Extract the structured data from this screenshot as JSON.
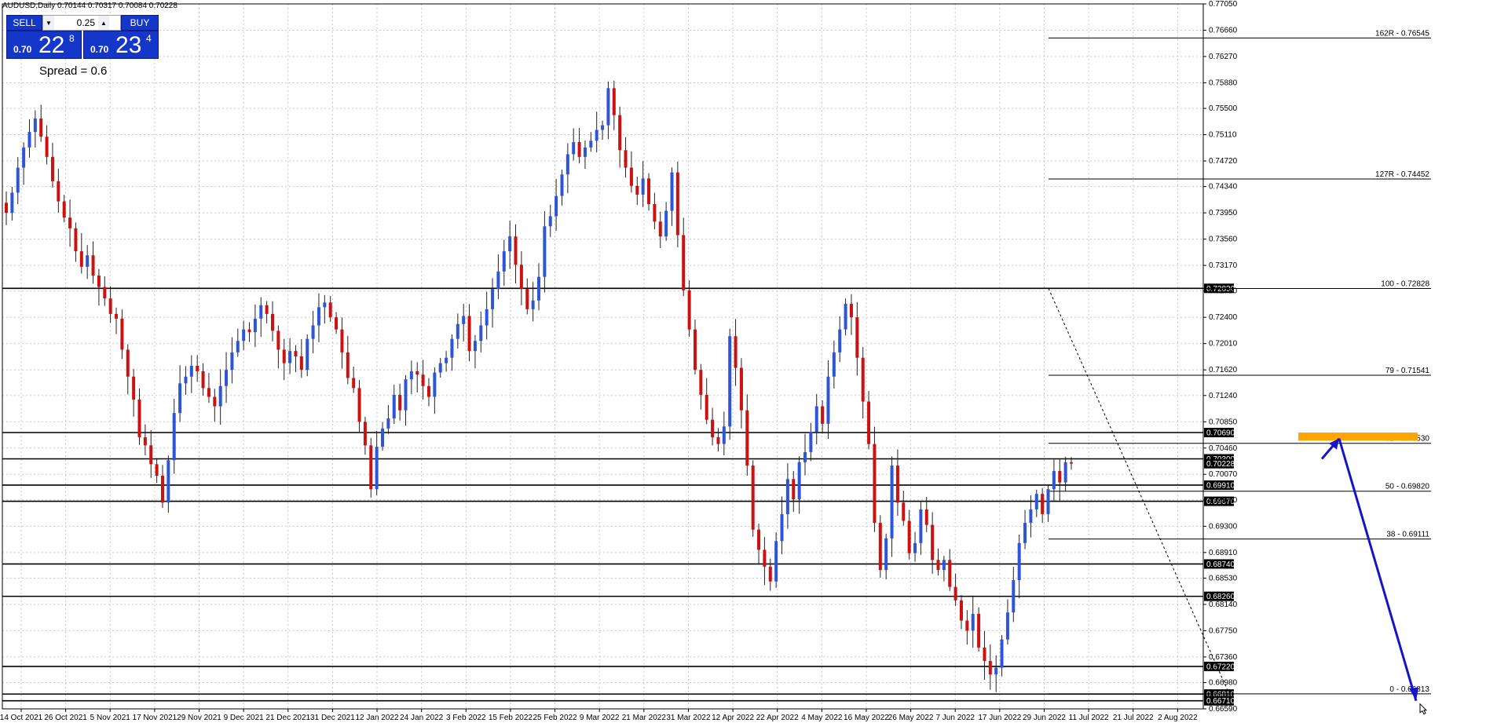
{
  "window": {
    "symbol_caption": "AUDUSD,Daily  0.70144 0.70317 0.70084 0.70228"
  },
  "trade_panel": {
    "sell_label": "SELL",
    "buy_label": "BUY",
    "lot_value": "0.25",
    "sell_prefix": "0.70",
    "sell_big": "22",
    "sell_sup": "8",
    "buy_prefix": "0.70",
    "buy_big": "23",
    "buy_sup": "4",
    "spread": "Spread = 0.6"
  },
  "colors": {
    "bull": "#2e55d6",
    "bear": "#cc1111",
    "grid": "#c8c8c8",
    "arrow": "#1414c8",
    "zone": "#ffa500"
  },
  "chart_data": {
    "type": "candlestick",
    "title": "",
    "ylim": [
      0.6659,
      0.7705
    ],
    "y_ticks": [
      "0.77050",
      "0.76660",
      "0.76270",
      "0.75880",
      "0.75500",
      "0.75110",
      "0.74720",
      "0.74340",
      "0.73950",
      "0.73560",
      "0.73170",
      "0.72790",
      "0.72400",
      "0.72010",
      "0.71620",
      "0.71240",
      "0.70850",
      "0.70460",
      "0.70070",
      "0.69690",
      "0.69300",
      "0.68910",
      "0.68530",
      "0.68140",
      "0.67750",
      "0.67360",
      "0.66980",
      "0.66590"
    ],
    "x_labels": [
      "14 Oct 2021",
      "26 Oct 2021",
      "5 Nov 2021",
      "17 Nov 2021",
      "29 Nov 2021",
      "9 Dec 2021",
      "21 Dec 2021",
      "31 Dec 2021",
      "12 Jan 2022",
      "24 Jan 2022",
      "3 Feb 2022",
      "15 Feb 2022",
      "25 Feb 2022",
      "9 Mar 2022",
      "21 Mar 2022",
      "31 Mar 2022",
      "12 Apr 2022",
      "22 Apr 2022",
      "4 May 2022",
      "16 May 2022",
      "26 May 2022",
      "7 Jun 2022",
      "17 Jun 2022",
      "29 Jun 2022",
      "11 Jul 2022",
      "21 Jul 2022",
      "2 Aug 2022"
    ],
    "close_path": [
      0.7395,
      0.7425,
      0.7462,
      0.7492,
      0.7515,
      0.7535,
      0.7508,
      0.7478,
      0.7442,
      0.7412,
      0.7388,
      0.7372,
      0.7338,
      0.7315,
      0.7332,
      0.7302,
      0.7285,
      0.7268,
      0.7245,
      0.7238,
      0.7192,
      0.7152,
      0.7118,
      0.7062,
      0.705,
      0.7022,
      0.7005,
      0.6965,
      0.7028,
      0.7098,
      0.7142,
      0.7152,
      0.7168,
      0.716,
      0.7135,
      0.7122,
      0.7108,
      0.7138,
      0.7162,
      0.7188,
      0.7205,
      0.7222,
      0.7218,
      0.7238,
      0.7258,
      0.7245,
      0.722,
      0.7192,
      0.7172,
      0.719,
      0.7182,
      0.7162,
      0.7208,
      0.7228,
      0.7255,
      0.7262,
      0.724,
      0.7222,
      0.7188,
      0.715,
      0.7135,
      0.7085,
      0.705,
      0.6985,
      0.7048,
      0.7075,
      0.709,
      0.7125,
      0.7102,
      0.7148,
      0.716,
      0.7155,
      0.7138,
      0.7122,
      0.7158,
      0.7172,
      0.718,
      0.7208,
      0.723,
      0.7242,
      0.719,
      0.7205,
      0.7228,
      0.7252,
      0.7282,
      0.7308,
      0.7338,
      0.736,
      0.7318,
      0.7282,
      0.7252,
      0.7265,
      0.73,
      0.7375,
      0.739,
      0.742,
      0.7452,
      0.7482,
      0.75,
      0.7478,
      0.7492,
      0.7502,
      0.7518,
      0.7525,
      0.758,
      0.754,
      0.7488,
      0.7462,
      0.7435,
      0.7422,
      0.7446,
      0.7408,
      0.7382,
      0.736,
      0.7398,
      0.7455,
      0.7362,
      0.728,
      0.7222,
      0.7162,
      0.7125,
      0.7088,
      0.7062,
      0.7052,
      0.7078,
      0.7212,
      0.7165,
      0.7102,
      0.702,
      0.6925,
      0.6895,
      0.687,
      0.6848,
      0.6908,
      0.6948,
      0.7,
      0.697,
      0.7025,
      0.704,
      0.707,
      0.7108,
      0.7082,
      0.7152,
      0.7188,
      0.7222,
      0.726,
      0.724,
      0.718,
      0.7115,
      0.7052,
      0.6935,
      0.6865,
      0.6912,
      0.702,
      0.6965,
      0.6938,
      0.689,
      0.6905,
      0.6955,
      0.6932,
      0.688,
      0.6865,
      0.688,
      0.684,
      0.682,
      0.679,
      0.6775,
      0.68,
      0.675,
      0.673,
      0.671,
      0.672,
      0.6762,
      0.6802,
      0.685,
      0.6905,
      0.6935,
      0.6955,
      0.6978,
      0.6948,
      0.6985,
      0.7012,
      0.6995,
      0.7025,
      0.7023
    ],
    "horizontal_levels": [
      {
        "price": 0.7283,
        "label": "0.72830"
      },
      {
        "price": 0.7069,
        "label": "0.70690"
      },
      {
        "price": 0.703,
        "label": "0.70300"
      },
      {
        "price": 0.6991,
        "label": "0.69910"
      },
      {
        "price": 0.6967,
        "label": "0.69670"
      },
      {
        "price": 0.6874,
        "label": "0.68740"
      },
      {
        "price": 0.6826,
        "label": "0.68260"
      },
      {
        "price": 0.6722,
        "label": "0.67220"
      },
      {
        "price": 0.6681,
        "label": "0.66810"
      },
      {
        "price": 0.6671,
        "label": "0.66710"
      }
    ],
    "current_price_label": "0.70228",
    "fibonacci": [
      {
        "price": 0.76545,
        "label": "162R - 0.76545"
      },
      {
        "price": 0.74452,
        "label": "127R - 0.74452"
      },
      {
        "price": 0.72828,
        "label": "100 - 0.72828"
      },
      {
        "price": 0.71541,
        "label": "79 - 0.71541"
      },
      {
        "price": 0.7053,
        "label": "62 - 0.70530"
      },
      {
        "price": 0.6982,
        "label": "50 - 0.69820"
      },
      {
        "price": 0.69111,
        "label": "38 - 0.69111"
      },
      {
        "price": 0.66813,
        "label": "0 - 0.66813"
      }
    ],
    "zone": {
      "price_top": 0.7069,
      "price_bottom": 0.7057
    },
    "projection": [
      0.703,
      0.706,
      0.6671
    ]
  }
}
